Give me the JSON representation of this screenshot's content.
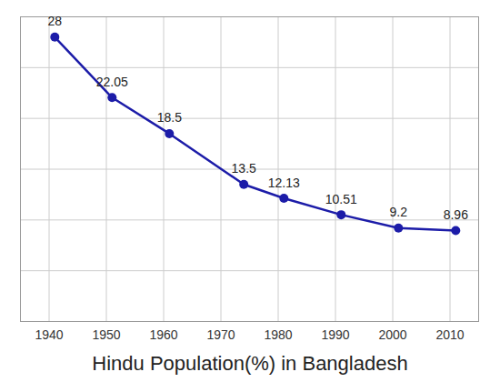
{
  "chart_data": {
    "type": "line",
    "title": "Hindu Population(%) in Bangladesh",
    "x": [
      1941,
      1951,
      1961,
      1974,
      1981,
      1991,
      2001,
      2011
    ],
    "values": [
      28,
      22.05,
      18.5,
      13.5,
      12.13,
      10.51,
      9.2,
      8.96
    ],
    "color": "#1c1ca8",
    "marker": "circle",
    "xlim": [
      1935,
      2015
    ],
    "xticks": [
      1940,
      1950,
      1960,
      1970,
      1980,
      1990,
      2000,
      2010
    ],
    "ylim": [
      0,
      30
    ],
    "yticks": [
      0,
      5,
      10,
      15,
      20,
      25,
      30
    ],
    "grid": true,
    "data_labels": true,
    "tick_labels": "x"
  }
}
